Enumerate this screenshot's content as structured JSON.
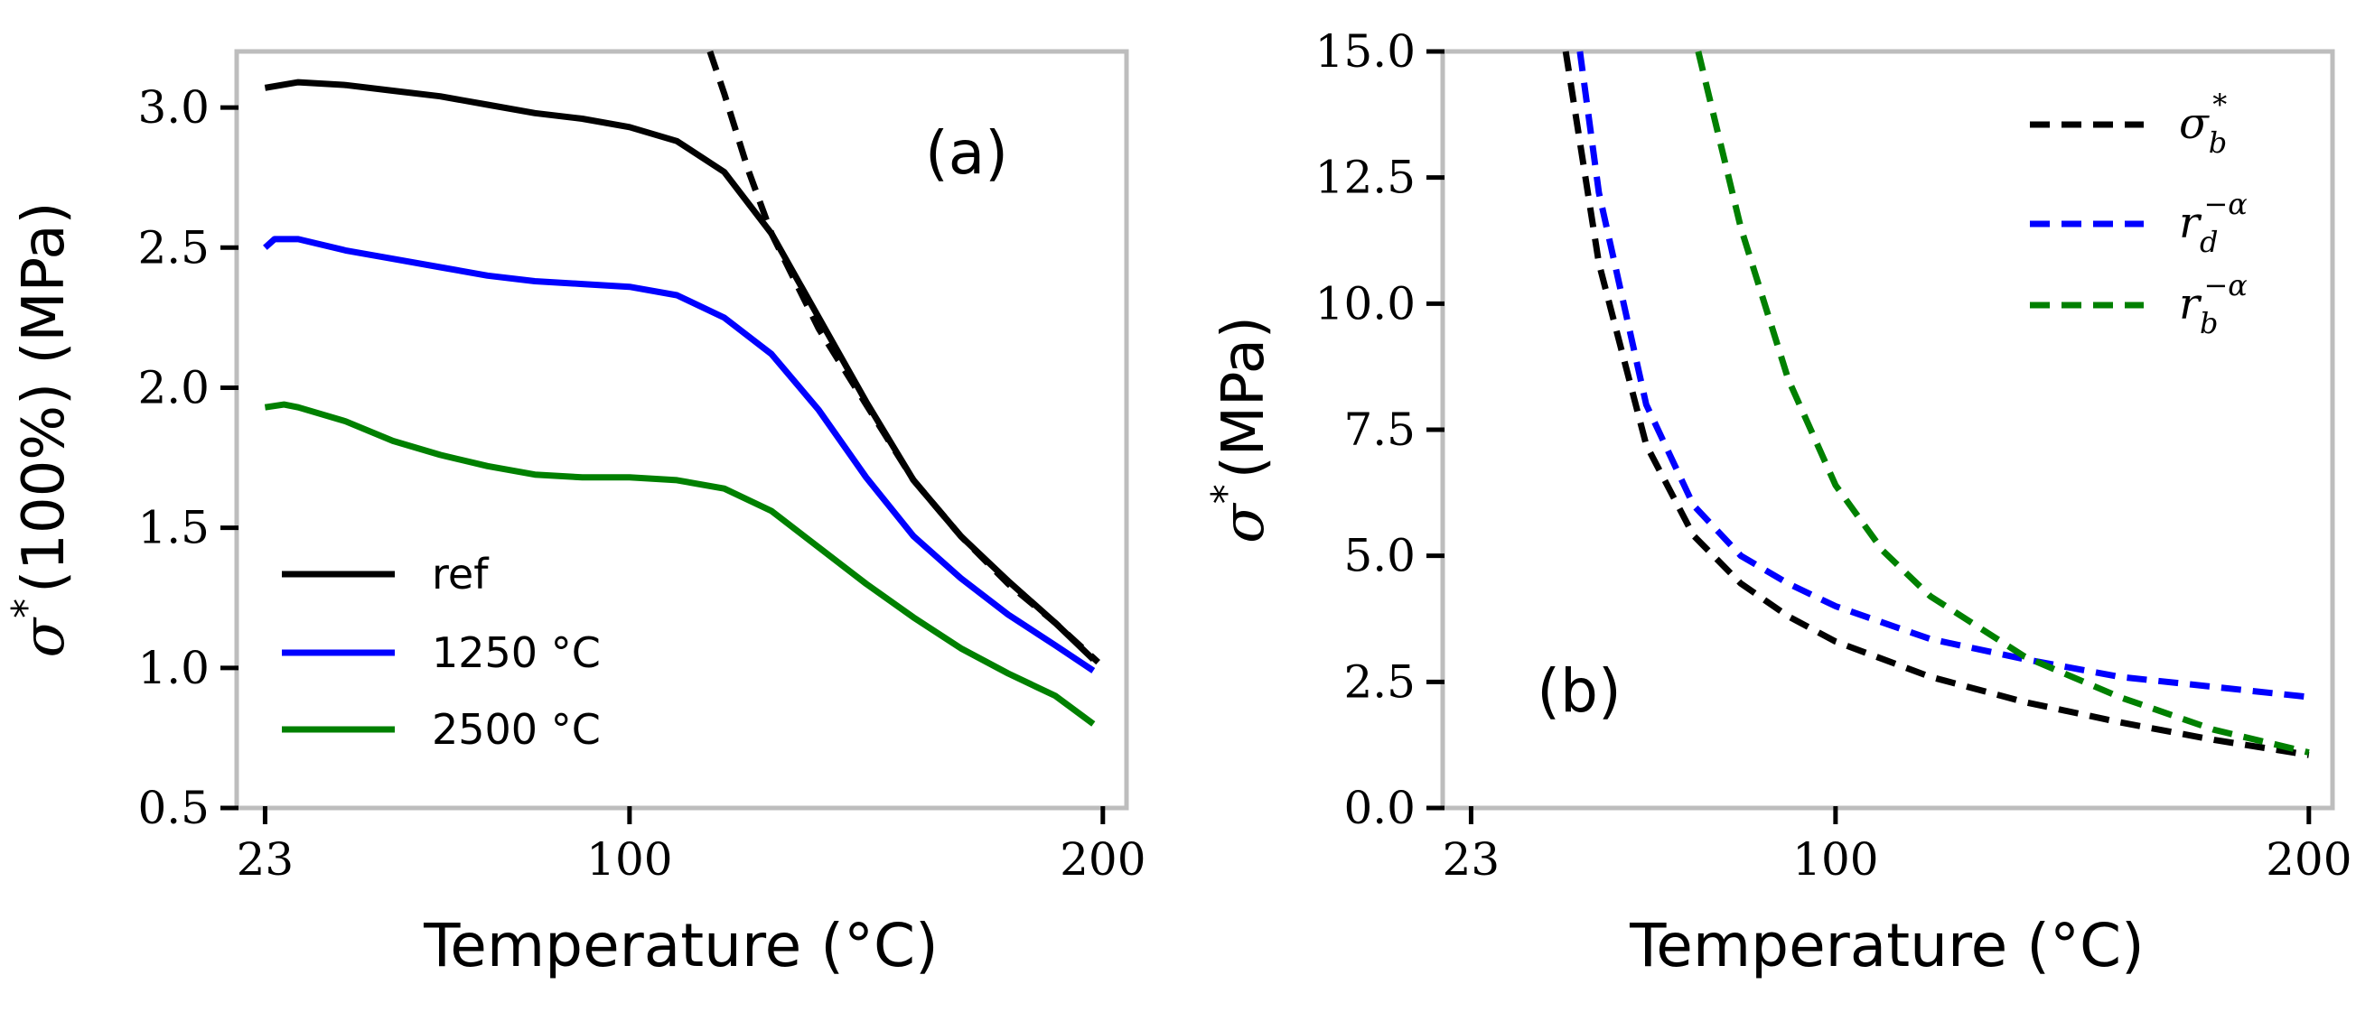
{
  "chart_data": [
    {
      "panel": "(a)",
      "type": "line",
      "xlabel": "Temperature (°C)",
      "ylabel_symbol": "σ",
      "ylabel_sup": "*",
      "ylabel_rest": "(100%) (MPa)",
      "xlim": [
        17,
        205
      ],
      "ylim": [
        0.5,
        3.2
      ],
      "xticks": [
        23,
        100,
        200
      ],
      "xtick_labels": [
        "23",
        "100",
        "200"
      ],
      "yticks": [
        0.5,
        1.0,
        1.5,
        2.0,
        2.5,
        3.0
      ],
      "ytick_labels": [
        "0.5",
        "1.0",
        "1.5",
        "2.0",
        "2.5",
        "3.0"
      ],
      "legend_position": "lower-left",
      "series": [
        {
          "name": "ref",
          "color": "#000000",
          "style": "solid",
          "x": [
            23,
            30,
            40,
            50,
            60,
            70,
            80,
            90,
            100,
            110,
            120,
            130,
            140,
            150,
            160,
            170,
            180,
            190,
            198
          ],
          "y": [
            3.07,
            3.09,
            3.08,
            3.06,
            3.04,
            3.01,
            2.98,
            2.96,
            2.93,
            2.88,
            2.77,
            2.55,
            2.25,
            1.95,
            1.67,
            1.47,
            1.31,
            1.16,
            1.03
          ]
        },
        {
          "name": "1250 °C",
          "color": "#0000ff",
          "style": "solid",
          "x": [
            23,
            25,
            30,
            40,
            50,
            60,
            70,
            80,
            90,
            100,
            110,
            120,
            130,
            140,
            150,
            160,
            170,
            180,
            190,
            198
          ],
          "y": [
            2.5,
            2.53,
            2.53,
            2.49,
            2.46,
            2.43,
            2.4,
            2.38,
            2.37,
            2.36,
            2.33,
            2.25,
            2.12,
            1.92,
            1.68,
            1.47,
            1.32,
            1.19,
            1.08,
            0.99
          ]
        },
        {
          "name": "2500 °C",
          "color": "#008000",
          "style": "solid",
          "x": [
            23,
            27,
            30,
            40,
            50,
            60,
            70,
            80,
            90,
            100,
            110,
            120,
            130,
            140,
            150,
            160,
            170,
            180,
            190,
            198
          ],
          "y": [
            1.93,
            1.94,
            1.93,
            1.88,
            1.81,
            1.76,
            1.72,
            1.69,
            1.68,
            1.68,
            1.67,
            1.64,
            1.56,
            1.43,
            1.3,
            1.18,
            1.07,
            0.98,
            0.9,
            0.8
          ]
        },
        {
          "name": "fit",
          "color": "#000000",
          "style": "dashed",
          "legend": false,
          "x": [
            117,
            120,
            125,
            130,
            140,
            150,
            160,
            170,
            180,
            190,
            199
          ],
          "y": [
            3.2,
            3.05,
            2.78,
            2.55,
            2.21,
            1.94,
            1.67,
            1.47,
            1.3,
            1.16,
            1.02
          ]
        }
      ]
    },
    {
      "panel": "(b)",
      "type": "line",
      "xlabel": "Temperature (°C)",
      "ylabel_symbol": "σ",
      "ylabel_sup": "*",
      "ylabel_rest": "(MPa)",
      "xlim": [
        17,
        205
      ],
      "ylim": [
        0,
        15
      ],
      "xticks": [
        23,
        100,
        200
      ],
      "xtick_labels": [
        "23",
        "100",
        "200"
      ],
      "yticks": [
        0,
        2.5,
        5,
        7.5,
        10,
        12.5,
        15
      ],
      "ytick_labels": [
        "0.0",
        "2.5",
        "5.0",
        "7.5",
        "10.0",
        "12.5",
        "15.0"
      ],
      "legend_position": "top-right",
      "series": [
        {
          "name": "σb*",
          "color": "#000000",
          "style": "dashed",
          "legend_base": "σ",
          "legend_sub": "b",
          "legend_sup": "*",
          "x": [
            43,
            50,
            60,
            70,
            80,
            90,
            100,
            120,
            140,
            160,
            180,
            200
          ],
          "y": [
            15.0,
            10.8,
            7.2,
            5.4,
            4.45,
            3.8,
            3.3,
            2.6,
            2.1,
            1.7,
            1.35,
            1.05
          ]
        },
        {
          "name": "rd−α",
          "color": "#0000ff",
          "style": "dashed",
          "legend_base": "r",
          "legend_sub": "d",
          "legend_sup": "−α",
          "x": [
            46,
            50,
            60,
            70,
            80,
            90,
            100,
            120,
            140,
            160,
            180,
            200
          ],
          "y": [
            15.0,
            12.2,
            8.0,
            6.0,
            5.0,
            4.45,
            4.0,
            3.35,
            2.95,
            2.6,
            2.4,
            2.2
          ]
        },
        {
          "name": "rb−α",
          "color": "#008000",
          "style": "dashed",
          "legend_base": "r",
          "legend_sub": "b",
          "legend_sup": "−α",
          "x": [
            71,
            80,
            90,
            100,
            110,
            120,
            140,
            160,
            180,
            200
          ],
          "y": [
            15.0,
            11.5,
            8.5,
            6.4,
            5.1,
            4.2,
            3.0,
            2.2,
            1.55,
            1.1
          ]
        }
      ]
    }
  ],
  "legend_a": {
    "ref": "ref",
    "s1250": "1250 °C",
    "s2500": "2500 °C"
  },
  "panel_labels": {
    "a": "(a)",
    "b": "(b)"
  }
}
